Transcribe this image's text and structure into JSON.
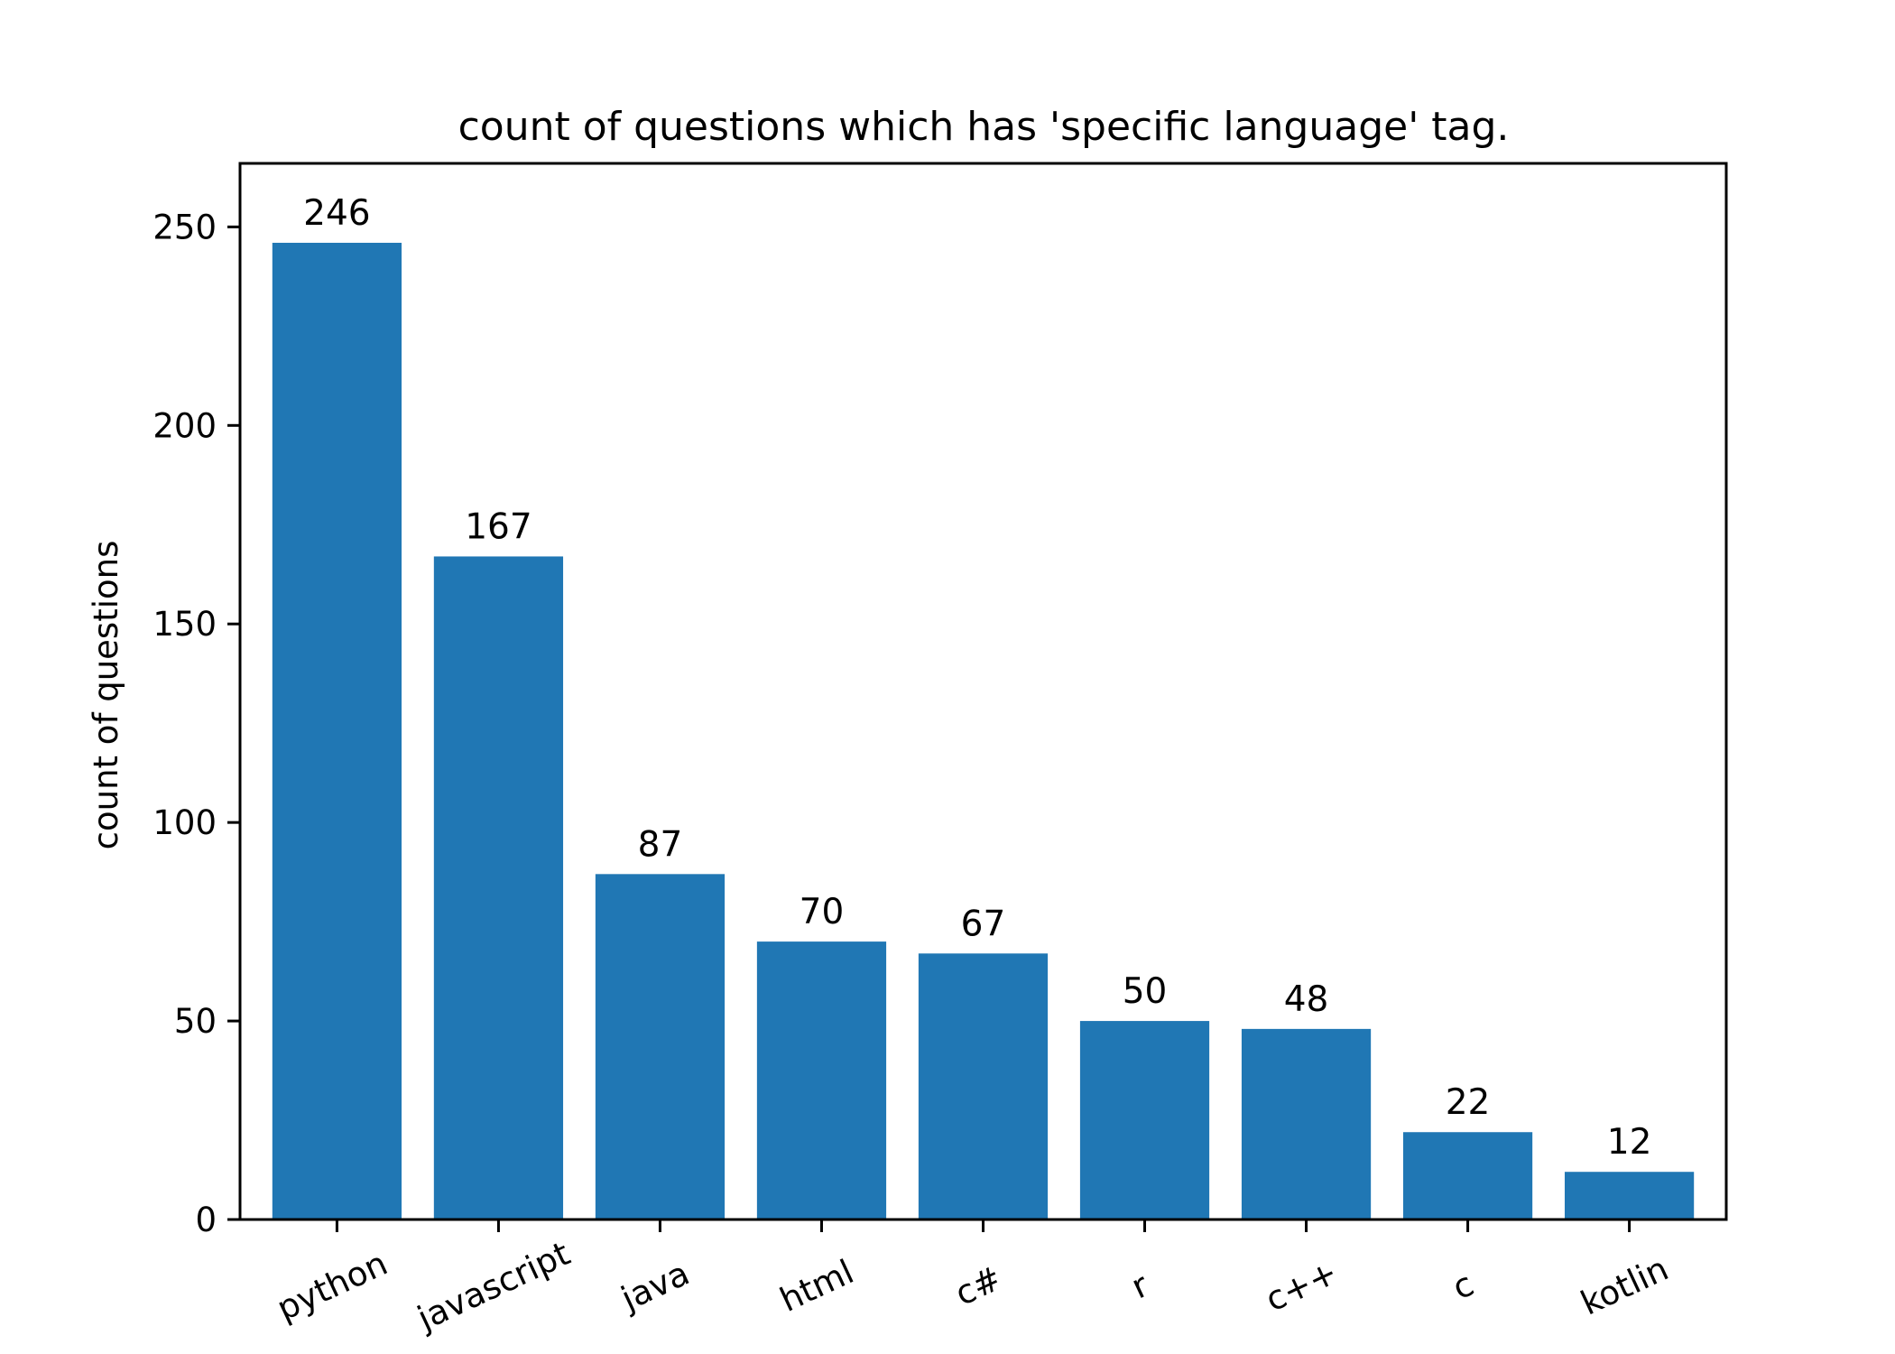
{
  "chart_data": {
    "type": "bar",
    "title": "count of questions which has 'specific language' tag.",
    "xlabel": "",
    "ylabel": "count of questions",
    "categories": [
      "python",
      "javascript",
      "java",
      "html",
      "c#",
      "r",
      "c++",
      "c",
      "kotlin"
    ],
    "values": [
      246,
      167,
      87,
      70,
      67,
      50,
      48,
      22,
      12
    ],
    "bar_labels": [
      "246",
      "167",
      "87",
      "70",
      "67",
      "50",
      "48",
      "22",
      "12"
    ],
    "ylim": [
      0,
      266
    ],
    "yticks": [
      0,
      50,
      100,
      150,
      200,
      250
    ],
    "ytick_labels": [
      "0",
      "50",
      "100",
      "150",
      "200",
      "250"
    ],
    "bar_color": "#2077b4",
    "grid": false,
    "legend": "none"
  }
}
